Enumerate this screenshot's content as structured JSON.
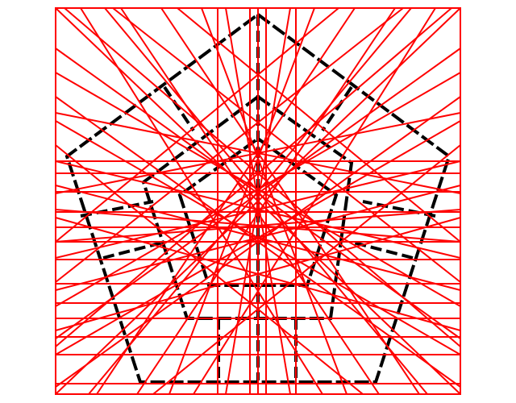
{
  "diagram": {
    "colors": {
      "background": "#ffffff",
      "frame": "#ff0000",
      "construction": "#ff0000",
      "figure": "#000000"
    }
  }
}
